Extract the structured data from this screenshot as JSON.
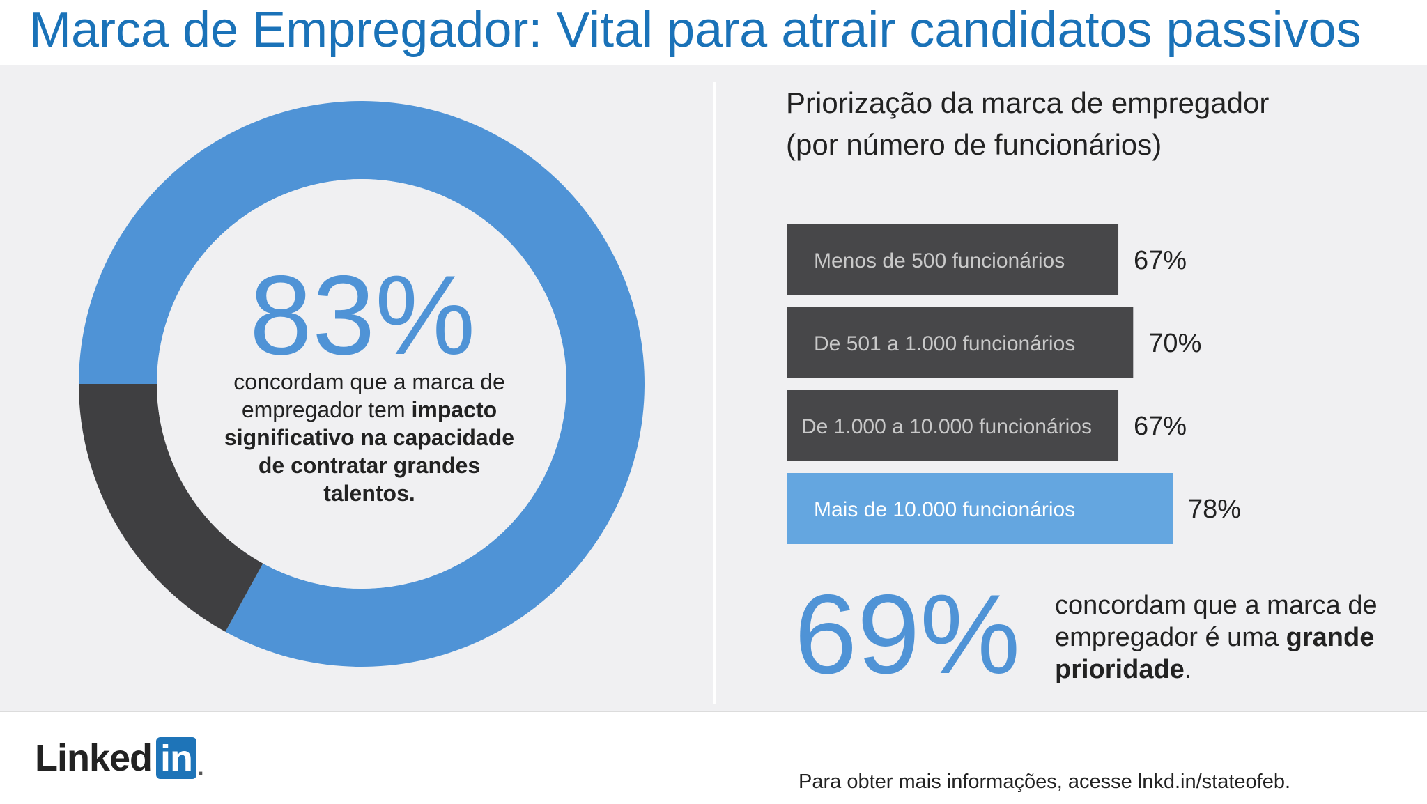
{
  "header": {
    "title": "Marca de Empregador: Vital para atrair candidatos passivos"
  },
  "donut": {
    "percent_label": "83%",
    "caption_plain": "concordam que a marca de empregador tem",
    "caption_bold": "impacto significativo na capacidade de contratar grandes talentos."
  },
  "bar_section": {
    "title_line1": "Priorização da marca de empregador",
    "title_line2": "(por número de funcionários)"
  },
  "bottom_stat": {
    "percent_label": "69%",
    "caption_plain": "concordam que a marca de empregador é uma",
    "caption_bold": "grande prioridade",
    "caption_end": "."
  },
  "footer": {
    "logo_text": "Linked",
    "logo_box": "in",
    "note": "Para obter mais informações, acesse lnkd.in/stateofeb."
  },
  "colors": {
    "accent_blue": "#4f93d6",
    "bar_highlight": "#64a6e0",
    "bar_dark": "#474749",
    "donut_dark": "#3f3f41",
    "title_blue": "#1a72b8"
  },
  "chart_data": [
    {
      "type": "pie",
      "labels": [
        "concordam",
        ""
      ],
      "values": [
        83,
        17
      ],
      "donut": true
    },
    {
      "type": "bar",
      "orientation": "horizontal",
      "title": "Priorização da marca de empregador (por número de funcionários)",
      "categories": [
        "Menos de 500 funcionários",
        "De 501 a 1.000 funcionários",
        "De 1.000 a 10.000 funcionários",
        "Mais de 10.000 funcionários"
      ],
      "values": [
        67,
        70,
        67,
        78
      ],
      "value_labels": [
        "67%",
        "70%",
        "67%",
        "78%"
      ],
      "highlight_index": 3
    }
  ]
}
